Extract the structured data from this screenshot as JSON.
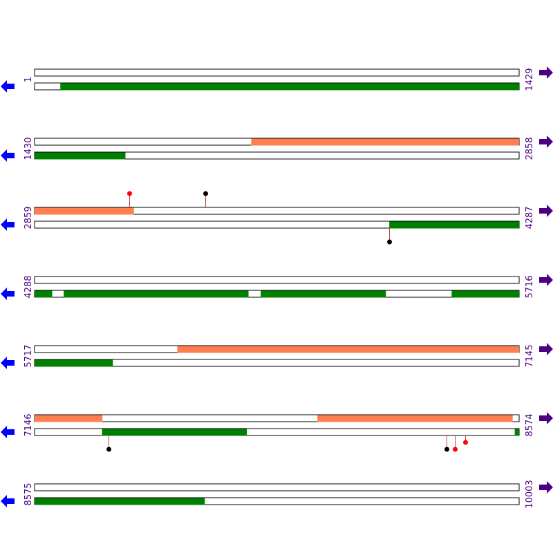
{
  "colors": {
    "forward_strand": "#ff7f50",
    "reverse_strand": "#008000",
    "left_arrow": "#0000ff",
    "right_arrow": "#4b0082",
    "coordinate_text": "#4b0082",
    "pin_red": "#ff0000",
    "pin_black": "#000000",
    "pin_stem": "#d04040",
    "track_outline": "#000000"
  },
  "icons": {
    "left": "arrow-left-icon",
    "right": "arrow-right-icon"
  },
  "rows": [
    {
      "start": 1,
      "end": 1429,
      "start_label": "1",
      "end_label": "1429",
      "forward": [],
      "reverse": [
        [
          77,
          1429
        ]
      ],
      "pins": []
    },
    {
      "start": 1430,
      "end": 2858,
      "start_label": "1430",
      "end_label": "2858",
      "forward": [
        [
          2069,
          2858
        ]
      ],
      "reverse": [
        [
          1430,
          1697
        ]
      ],
      "pins": []
    },
    {
      "start": 2859,
      "end": 4287,
      "start_label": "2859",
      "end_label": "4287",
      "forward": [
        [
          2859,
          3151
        ]
      ],
      "reverse": [
        [
          3905,
          4287
        ]
      ],
      "pins": [
        {
          "pos": 3139,
          "side": "up",
          "color": "red"
        },
        {
          "pos": 3363,
          "side": "up",
          "color": "black"
        },
        {
          "pos": 3905,
          "side": "down",
          "color": "black"
        }
      ]
    },
    {
      "start": 4288,
      "end": 5716,
      "start_label": "4288",
      "end_label": "5716",
      "forward": [],
      "reverse": [
        [
          4288,
          4339
        ],
        [
          4374,
          4918
        ],
        [
          4955,
          5323
        ],
        [
          5518,
          5716
        ]
      ],
      "pins": []
    },
    {
      "start": 5717,
      "end": 7145,
      "start_label": "5717",
      "end_label": "7145",
      "forward": [
        [
          6138,
          7145
        ]
      ],
      "reverse": [
        [
          5717,
          5947
        ]
      ],
      "pins": []
    },
    {
      "start": 7146,
      "end": 8574,
      "start_label": "7146",
      "end_label": "8574",
      "forward": [
        [
          7146,
          7345
        ],
        [
          7980,
          8555
        ]
      ],
      "reverse": [
        [
          7345,
          7771
        ],
        [
          8562,
          8574
        ]
      ],
      "pins": [
        {
          "pos": 7364,
          "side": "down",
          "color": "black"
        },
        {
          "pos": 8360,
          "side": "down",
          "color": "black"
        },
        {
          "pos": 8386,
          "side": "down",
          "color": "red"
        },
        {
          "pos": 8416,
          "side": "down",
          "color": "red",
          "short": true
        }
      ]
    },
    {
      "start": 8575,
      "end": 10003,
      "start_label": "8575",
      "end_label": "10003",
      "forward": [],
      "reverse": [
        [
          8575,
          9076
        ]
      ],
      "pins": []
    }
  ]
}
